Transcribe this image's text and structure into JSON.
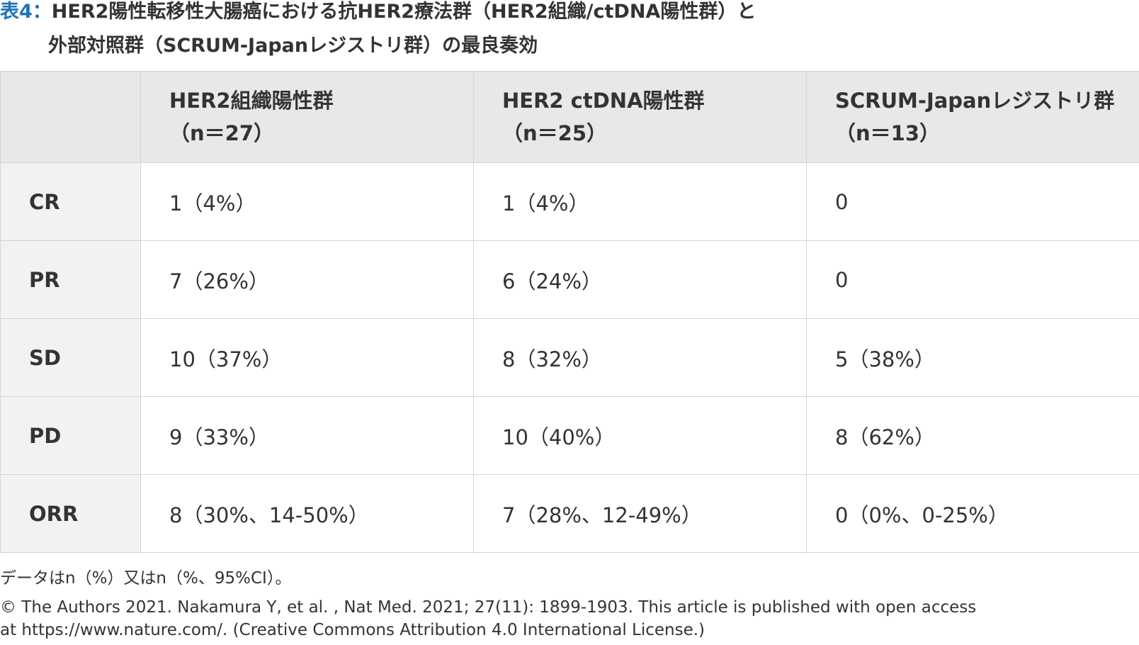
{
  "title": {
    "label": "表4：",
    "line1": "HER2陽性転移性大腸癌における抗HER2療法群（HER2組織/ctDNA陽性群）と",
    "line2": "外部対照群（SCRUM-Japanレジストリ群）の最良奏効"
  },
  "table": {
    "columns": [
      {
        "name": "HER2組織陽性群",
        "n": "（n＝27）"
      },
      {
        "name": "HER2 ctDNA陽性群",
        "n": "（n＝25）"
      },
      {
        "name": "SCRUM-Japanレジストリ群",
        "n": "（n＝13）"
      }
    ],
    "rows": [
      {
        "label": "CR",
        "values": [
          "1（4%）",
          "1（4%）",
          "0"
        ]
      },
      {
        "label": "PR",
        "values": [
          "7（26%）",
          "6（24%）",
          "0"
        ]
      },
      {
        "label": "SD",
        "values": [
          "10（37%）",
          "8（32%）",
          "5（38%）"
        ]
      },
      {
        "label": "PD",
        "values": [
          "9（33%）",
          "10（40%）",
          "8（62%）"
        ]
      },
      {
        "label": "ORR",
        "values": [
          "8（30%、14-50%）",
          "7（28%、12-49%）",
          "0（0%、0-25%）"
        ]
      }
    ]
  },
  "note": "データはn（%）又はn（%、95%CI）。",
  "credit": "© The Authors 2021. Nakamura Y, et al. , Nat Med. 2021; 27(11): 1899-1903. This article is published with open access at https://www.nature.com/. (Creative Commons Attribution 4.0 International License.)",
  "colors": {
    "title_label": "#1d74b9",
    "header_bg": "#e8e8e8",
    "rowhead_bg": "#f2f2f2",
    "border": "#d4d4d4",
    "text": "#333333"
  }
}
